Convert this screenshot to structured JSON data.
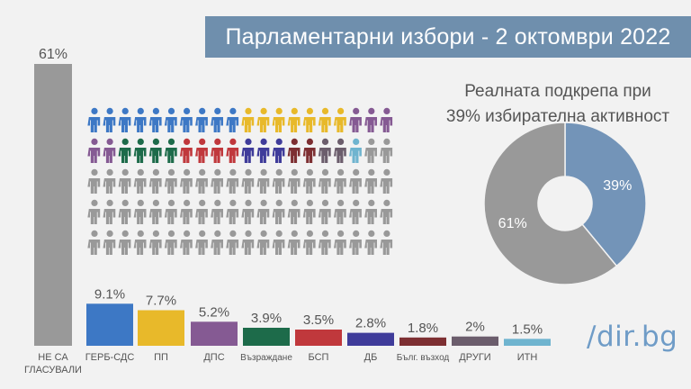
{
  "header": {
    "title": "Парламентарни избори - 2 октомври 2022"
  },
  "chart_data": [
    {
      "type": "bar",
      "categories": [
        "НЕ СА\nГЛАСУВАЛИ",
        "ГЕРБ-СДС",
        "ПП",
        "ДПС",
        "Възраждане",
        "БСП",
        "ДБ",
        "Бълг. възход",
        "ДРУГИ",
        "ИТН"
      ],
      "values": [
        61,
        9.1,
        7.7,
        5.2,
        3.9,
        3.5,
        2.8,
        1.8,
        2,
        1.5
      ],
      "value_labels": [
        "61%",
        "9.1%",
        "7.7%",
        "5.2%",
        "3.9%",
        "3.5%",
        "2.8%",
        "1.8%",
        "2%",
        "1.5%"
      ],
      "colors": [
        "#999999",
        "#3d78c5",
        "#e8b92a",
        "#855a93",
        "#1d6b4a",
        "#c0383c",
        "#3f3c9a",
        "#7d2f32",
        "#6b5d6c",
        "#6fb4cf"
      ]
    },
    {
      "type": "pie",
      "title_lines": [
        "Реалната подкрепа при",
        "39% избирателна активност"
      ],
      "slices": [
        {
          "label": "39%",
          "value": 39,
          "color": "#7394b8"
        },
        {
          "label": "61%",
          "value": 61,
          "color": "#999999"
        }
      ]
    }
  ],
  "pictogram": {
    "rows": [
      [
        "#3d78c5",
        "#3d78c5",
        "#3d78c5",
        "#3d78c5",
        "#3d78c5",
        "#3d78c5",
        "#3d78c5",
        "#3d78c5",
        "#3d78c5",
        "#3d78c5",
        "#e8b92a",
        "#e8b92a",
        "#e8b92a",
        "#e8b92a",
        "#e8b92a",
        "#e8b92a",
        "#e8b92a",
        "#855a93",
        "#855a93",
        "#855a93"
      ],
      [
        "#855a93",
        "#855a93",
        "#1d6b4a",
        "#1d6b4a",
        "#1d6b4a",
        "#1d6b4a",
        "#c0383c",
        "#c0383c",
        "#c0383c",
        "#c0383c",
        "#3f3c9a",
        "#3f3c9a",
        "#3f3c9a",
        "#7d2f32",
        "#7d2f32",
        "#6b5d6c",
        "#6b5d6c",
        "#6fb4cf",
        "#999999",
        "#999999"
      ],
      [
        "#999999",
        "#999999",
        "#999999",
        "#999999",
        "#999999",
        "#999999",
        "#999999",
        "#999999",
        "#999999",
        "#999999",
        "#999999",
        "#999999",
        "#999999",
        "#999999",
        "#999999",
        "#999999",
        "#999999",
        "#999999",
        "#999999",
        "#999999"
      ],
      [
        "#999999",
        "#999999",
        "#999999",
        "#999999",
        "#999999",
        "#999999",
        "#999999",
        "#999999",
        "#999999",
        "#999999",
        "#999999",
        "#999999",
        "#999999",
        "#999999",
        "#999999",
        "#999999",
        "#999999",
        "#999999",
        "#999999",
        "#999999"
      ],
      [
        "#999999",
        "#999999",
        "#999999",
        "#999999",
        "#999999",
        "#999999",
        "#999999",
        "#999999",
        "#999999",
        "#999999",
        "#999999",
        "#999999",
        "#999999",
        "#999999",
        "#999999",
        "#999999",
        "#999999",
        "#999999",
        "#999999",
        "#999999"
      ]
    ]
  },
  "branding": {
    "logo": "/dir.bg"
  }
}
